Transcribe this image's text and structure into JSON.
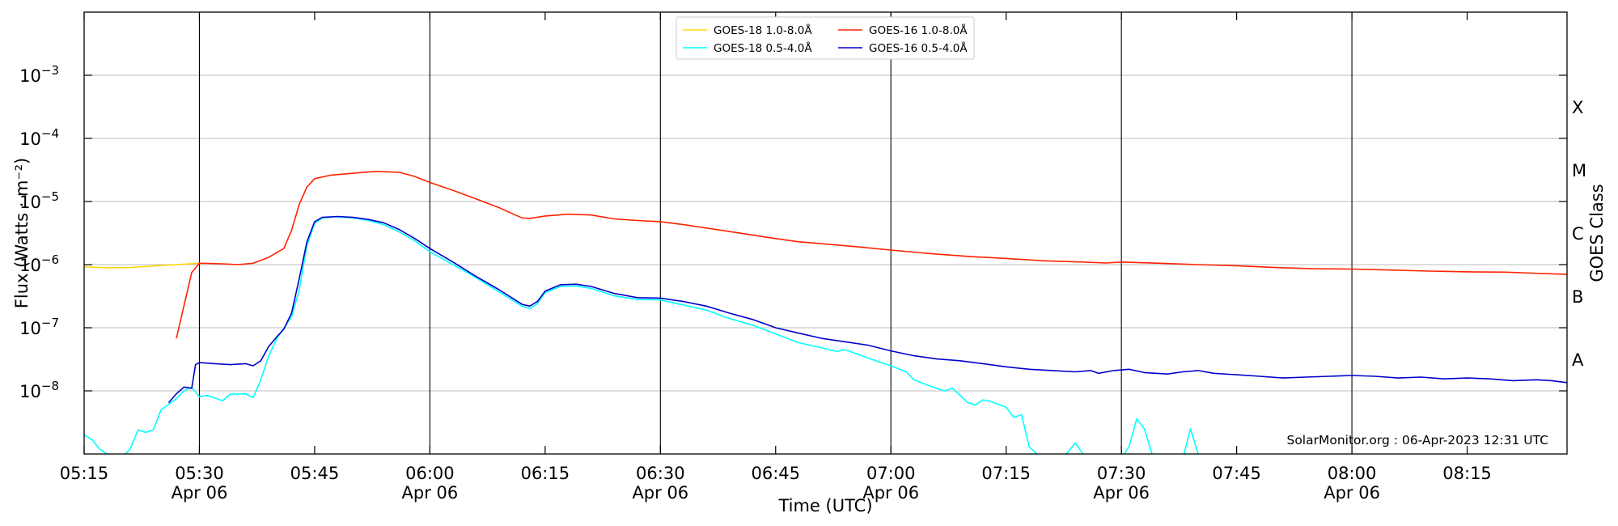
{
  "chart_data": {
    "type": "line",
    "xlabel": "Time (UTC)",
    "ylabel": "Flux (Watts · m⁻²)",
    "ylabel_right": "GOES Class",
    "ylog": true,
    "xlim": [
      "05:15",
      "08:28"
    ],
    "ylim": [
      1e-09,
      0.01
    ],
    "grid": "horizontal",
    "legend_position": "top-center",
    "credit": "SolarMonitor.org : 06-Apr-2023 12:31 UTC",
    "x_ticks": [
      {
        "time": "05:15",
        "label": "05:15",
        "sub": ""
      },
      {
        "time": "05:30",
        "label": "05:30",
        "sub": "Apr 06"
      },
      {
        "time": "05:45",
        "label": "05:45",
        "sub": ""
      },
      {
        "time": "06:00",
        "label": "06:00",
        "sub": "Apr 06"
      },
      {
        "time": "06:15",
        "label": "06:15",
        "sub": ""
      },
      {
        "time": "06:30",
        "label": "06:30",
        "sub": "Apr 06"
      },
      {
        "time": "06:45",
        "label": "06:45",
        "sub": ""
      },
      {
        "time": "07:00",
        "label": "07:00",
        "sub": "Apr 06"
      },
      {
        "time": "07:15",
        "label": "07:15",
        "sub": ""
      },
      {
        "time": "07:30",
        "label": "07:30",
        "sub": "Apr 06"
      },
      {
        "time": "07:45",
        "label": "07:45",
        "sub": ""
      },
      {
        "time": "08:00",
        "label": "08:00",
        "sub": "Apr 06"
      },
      {
        "time": "08:15",
        "label": "08:15",
        "sub": ""
      }
    ],
    "y_ticks": [
      {
        "value": 1e-08,
        "base": "10",
        "exp": "−8"
      },
      {
        "value": 1e-07,
        "base": "10",
        "exp": "−7"
      },
      {
        "value": 1e-06,
        "base": "10",
        "exp": "−6"
      },
      {
        "value": 1e-05,
        "base": "10",
        "exp": "−5"
      },
      {
        "value": 0.0001,
        "base": "10",
        "exp": "−4"
      },
      {
        "value": 0.001,
        "base": "10",
        "exp": "−3"
      }
    ],
    "vlines": [
      "05:30",
      "06:00",
      "06:30",
      "07:00",
      "07:30",
      "08:00"
    ],
    "goes_classes": [
      {
        "label": "A",
        "value": 3.16e-08
      },
      {
        "label": "B",
        "value": 3.16e-07
      },
      {
        "label": "C",
        "value": 3.16e-06
      },
      {
        "label": "M",
        "value": 3.16e-05
      },
      {
        "label": "X",
        "value": 0.000316
      }
    ],
    "series": [
      {
        "name": "GOES-18 1.0-8.0Å",
        "color": "#FFD700",
        "points": [
          [
            "05:15",
            9.2e-07
          ],
          [
            "05:18",
            8.9e-07
          ],
          [
            "05:21",
            9e-07
          ],
          [
            "05:24",
            9.5e-07
          ],
          [
            "05:27",
            1e-06
          ],
          [
            "05:30",
            1.05e-06
          ]
        ]
      },
      {
        "name": "GOES-18 0.5-4.0Å",
        "color": "#00FFFF",
        "points": [
          [
            "05:15",
            2e-09
          ],
          [
            "05:16",
            1.7e-09
          ],
          [
            "05:17",
            1.2e-09
          ],
          [
            "05:18",
            1e-09
          ],
          [
            "05:20",
            9e-10
          ],
          [
            "05:21",
            1.2e-09
          ],
          [
            "05:22",
            2.4e-09
          ],
          [
            "05:23",
            2.2e-09
          ],
          [
            "05:24",
            2.4e-09
          ],
          [
            "05:25",
            5e-09
          ],
          [
            "05:27",
            7.5e-09
          ],
          [
            "05:28",
            1e-08
          ],
          [
            "05:29",
            1.15e-08
          ],
          [
            "05:30",
            8e-09
          ],
          [
            "05:31",
            8.5e-09
          ],
          [
            "05:33",
            7e-09
          ],
          [
            "05:34",
            8.8e-09
          ],
          [
            "05:36",
            9e-09
          ],
          [
            "05:37",
            7.8e-09
          ],
          [
            "05:38",
            1.5e-08
          ],
          [
            "05:39",
            3.5e-08
          ],
          [
            "05:40",
            6.5e-08
          ],
          [
            "05:42",
            1.5e-07
          ],
          [
            "05:43",
            4e-07
          ],
          [
            "05:44",
            2e-06
          ],
          [
            "05:45",
            4.5e-06
          ],
          [
            "05:46",
            5.5e-06
          ],
          [
            "05:48",
            5.7e-06
          ],
          [
            "05:50",
            5.5e-06
          ],
          [
            "05:52",
            5e-06
          ],
          [
            "05:54",
            4.3e-06
          ],
          [
            "05:56",
            3.3e-06
          ],
          [
            "05:58",
            2.4e-06
          ],
          [
            "06:00",
            1.6e-06
          ],
          [
            "06:03",
            1e-06
          ],
          [
            "06:06",
            6.2e-07
          ],
          [
            "06:09",
            3.7e-07
          ],
          [
            "06:12",
            2.2e-07
          ],
          [
            "06:13",
            2e-07
          ],
          [
            "06:14",
            2.4e-07
          ],
          [
            "06:15",
            3.6e-07
          ],
          [
            "06:17",
            4.5e-07
          ],
          [
            "06:19",
            4.6e-07
          ],
          [
            "06:21",
            4.2e-07
          ],
          [
            "06:24",
            3.2e-07
          ],
          [
            "06:27",
            2.8e-07
          ],
          [
            "06:30",
            2.75e-07
          ],
          [
            "06:33",
            2.3e-07
          ],
          [
            "06:36",
            1.9e-07
          ],
          [
            "06:39",
            1.4e-07
          ],
          [
            "06:42",
            1.1e-07
          ],
          [
            "06:45",
            8e-08
          ],
          [
            "06:48",
            5.8e-08
          ],
          [
            "06:51",
            4.8e-08
          ],
          [
            "06:53",
            4.2e-08
          ],
          [
            "06:54",
            4.5e-08
          ],
          [
            "06:56",
            3.7e-08
          ],
          [
            "06:58",
            3e-08
          ],
          [
            "07:00",
            2.5e-08
          ],
          [
            "07:02",
            2e-08
          ],
          [
            "07:03",
            1.5e-08
          ],
          [
            "07:05",
            1.2e-08
          ],
          [
            "07:07",
            1e-08
          ],
          [
            "07:08",
            1.1e-08
          ],
          [
            "07:09",
            8.5e-09
          ],
          [
            "07:10",
            6.5e-09
          ],
          [
            "07:11",
            6e-09
          ],
          [
            "07:12",
            7.2e-09
          ],
          [
            "07:13",
            6.8e-09
          ],
          [
            "07:15",
            5.5e-09
          ],
          [
            "07:16",
            3.8e-09
          ],
          [
            "07:17",
            4.2e-09
          ],
          [
            "07:18",
            1.3e-09
          ],
          [
            "07:19",
            1e-09
          ],
          [
            "07:20",
            8.5e-10
          ],
          [
            "07:22",
            8.5e-10
          ],
          [
            "07:23",
            1.05e-09
          ],
          [
            "07:24",
            1.5e-09
          ],
          [
            "07:25",
            1e-09
          ],
          [
            "07:26",
            8.5e-10
          ],
          [
            "07:29",
            1e-09
          ],
          [
            "07:30",
            8.5e-10
          ],
          [
            "07:31",
            1.3e-09
          ],
          [
            "07:32",
            3.6e-09
          ],
          [
            "07:33",
            2.5e-09
          ],
          [
            "07:34",
            1e-09
          ],
          [
            "07:35",
            8e-10
          ],
          [
            "07:38",
            8.5e-10
          ],
          [
            "07:39",
            2.5e-09
          ],
          [
            "07:40",
            1e-09
          ],
          [
            "07:41",
            8.5e-10
          ],
          [
            "08:28",
            8.5e-10
          ]
        ]
      },
      {
        "name": "GOES-16 1.0-8.0Å",
        "color": "#FF2200",
        "points": [
          [
            "05:27",
            6.8e-08
          ],
          [
            "05:29",
            7.5e-07
          ],
          [
            "05:30",
            1.05e-06
          ],
          [
            "05:33",
            1.03e-06
          ],
          [
            "05:35",
            1e-06
          ],
          [
            "05:37",
            1.05e-06
          ],
          [
            "05:39",
            1.3e-06
          ],
          [
            "05:41",
            1.8e-06
          ],
          [
            "05:42",
            3.5e-06
          ],
          [
            "05:43",
            9e-06
          ],
          [
            "05:44",
            1.7e-05
          ],
          [
            "05:45",
            2.3e-05
          ],
          [
            "05:47",
            2.6e-05
          ],
          [
            "05:50",
            2.8e-05
          ],
          [
            "05:53",
            3e-05
          ],
          [
            "05:56",
            2.9e-05
          ],
          [
            "05:58",
            2.5e-05
          ],
          [
            "06:00",
            2e-05
          ],
          [
            "06:03",
            1.5e-05
          ],
          [
            "06:06",
            1.1e-05
          ],
          [
            "06:09",
            8e-06
          ],
          [
            "06:11",
            6.2e-06
          ],
          [
            "06:12",
            5.5e-06
          ],
          [
            "06:13",
            5.4e-06
          ],
          [
            "06:15",
            5.9e-06
          ],
          [
            "06:18",
            6.3e-06
          ],
          [
            "06:21",
            6.1e-06
          ],
          [
            "06:24",
            5.3e-06
          ],
          [
            "06:27",
            5e-06
          ],
          [
            "06:30",
            4.8e-06
          ],
          [
            "06:33",
            4.3e-06
          ],
          [
            "06:36",
            3.8e-06
          ],
          [
            "06:40",
            3.2e-06
          ],
          [
            "06:44",
            2.7e-06
          ],
          [
            "06:48",
            2.3e-06
          ],
          [
            "06:52",
            2.1e-06
          ],
          [
            "06:56",
            1.9e-06
          ],
          [
            "07:00",
            1.7e-06
          ],
          [
            "07:05",
            1.5e-06
          ],
          [
            "07:10",
            1.35e-06
          ],
          [
            "07:15",
            1.25e-06
          ],
          [
            "07:20",
            1.15e-06
          ],
          [
            "07:25",
            1.1e-06
          ],
          [
            "07:28",
            1.06e-06
          ],
          [
            "07:30",
            1.1e-06
          ],
          [
            "07:35",
            1.05e-06
          ],
          [
            "07:40",
            1e-06
          ],
          [
            "07:45",
            9.6e-07
          ],
          [
            "07:50",
            9e-07
          ],
          [
            "07:55",
            8.6e-07
          ],
          [
            "08:00",
            8.5e-07
          ],
          [
            "08:05",
            8.2e-07
          ],
          [
            "08:10",
            7.9e-07
          ],
          [
            "08:15",
            7.7e-07
          ],
          [
            "08:20",
            7.6e-07
          ],
          [
            "08:25",
            7.2e-07
          ],
          [
            "08:28",
            7e-07
          ]
        ]
      },
      {
        "name": "GOES-16 0.5-4.0Å",
        "color": "#0000CC",
        "points": [
          [
            "05:26",
            6.5e-09
          ],
          [
            "05:27",
            9e-09
          ],
          [
            "05:28",
            1.15e-08
          ],
          [
            "05:29",
            1.1e-08
          ],
          [
            "05:29.5",
            2.6e-08
          ],
          [
            "05:30",
            2.8e-08
          ],
          [
            "05:32",
            2.7e-08
          ],
          [
            "05:34",
            2.6e-08
          ],
          [
            "05:36",
            2.7e-08
          ],
          [
            "05:37",
            2.5e-08
          ],
          [
            "05:38",
            3e-08
          ],
          [
            "05:39",
            5e-08
          ],
          [
            "05:40",
            7e-08
          ],
          [
            "05:41",
            9.5e-08
          ],
          [
            "05:42",
            1.7e-07
          ],
          [
            "05:43",
            6e-07
          ],
          [
            "05:44",
            2.3e-06
          ],
          [
            "05:45",
            4.8e-06
          ],
          [
            "05:46",
            5.6e-06
          ],
          [
            "05:48",
            5.8e-06
          ],
          [
            "05:50",
            5.6e-06
          ],
          [
            "05:52",
            5.2e-06
          ],
          [
            "05:54",
            4.6e-06
          ],
          [
            "05:56",
            3.6e-06
          ],
          [
            "05:58",
            2.6e-06
          ],
          [
            "06:00",
            1.8e-06
          ],
          [
            "06:03",
            1.1e-06
          ],
          [
            "06:06",
            6.5e-07
          ],
          [
            "06:09",
            4e-07
          ],
          [
            "06:12",
            2.35e-07
          ],
          [
            "06:13",
            2.2e-07
          ],
          [
            "06:14",
            2.6e-07
          ],
          [
            "06:15",
            3.8e-07
          ],
          [
            "06:17",
            4.8e-07
          ],
          [
            "06:19",
            4.9e-07
          ],
          [
            "06:21",
            4.5e-07
          ],
          [
            "06:24",
            3.5e-07
          ],
          [
            "06:27",
            3e-07
          ],
          [
            "06:30",
            2.95e-07
          ],
          [
            "06:33",
            2.6e-07
          ],
          [
            "06:36",
            2.2e-07
          ],
          [
            "06:39",
            1.7e-07
          ],
          [
            "06:42",
            1.35e-07
          ],
          [
            "06:45",
            1e-07
          ],
          [
            "06:48",
            8.2e-08
          ],
          [
            "06:51",
            6.8e-08
          ],
          [
            "06:54",
            6e-08
          ],
          [
            "06:57",
            5.3e-08
          ],
          [
            "07:00",
            4.3e-08
          ],
          [
            "07:03",
            3.6e-08
          ],
          [
            "07:06",
            3.2e-08
          ],
          [
            "07:09",
            3e-08
          ],
          [
            "07:12",
            2.7e-08
          ],
          [
            "07:15",
            2.4e-08
          ],
          [
            "07:18",
            2.2e-08
          ],
          [
            "07:21",
            2.1e-08
          ],
          [
            "07:24",
            2e-08
          ],
          [
            "07:26",
            2.1e-08
          ],
          [
            "07:27",
            1.9e-08
          ],
          [
            "07:29",
            2.1e-08
          ],
          [
            "07:31",
            2.2e-08
          ],
          [
            "07:33",
            1.95e-08
          ],
          [
            "07:36",
            1.85e-08
          ],
          [
            "07:38",
            2e-08
          ],
          [
            "07:40",
            2.1e-08
          ],
          [
            "07:42",
            1.9e-08
          ],
          [
            "07:45",
            1.8e-08
          ],
          [
            "07:48",
            1.7e-08
          ],
          [
            "07:51",
            1.6e-08
          ],
          [
            "07:54",
            1.65e-08
          ],
          [
            "07:57",
            1.7e-08
          ],
          [
            "08:00",
            1.75e-08
          ],
          [
            "08:03",
            1.7e-08
          ],
          [
            "08:06",
            1.6e-08
          ],
          [
            "08:09",
            1.65e-08
          ],
          [
            "08:12",
            1.55e-08
          ],
          [
            "08:15",
            1.6e-08
          ],
          [
            "08:18",
            1.55e-08
          ],
          [
            "08:21",
            1.45e-08
          ],
          [
            "08:24",
            1.5e-08
          ],
          [
            "08:26",
            1.45e-08
          ],
          [
            "08:28",
            1.35e-08
          ]
        ]
      }
    ]
  }
}
